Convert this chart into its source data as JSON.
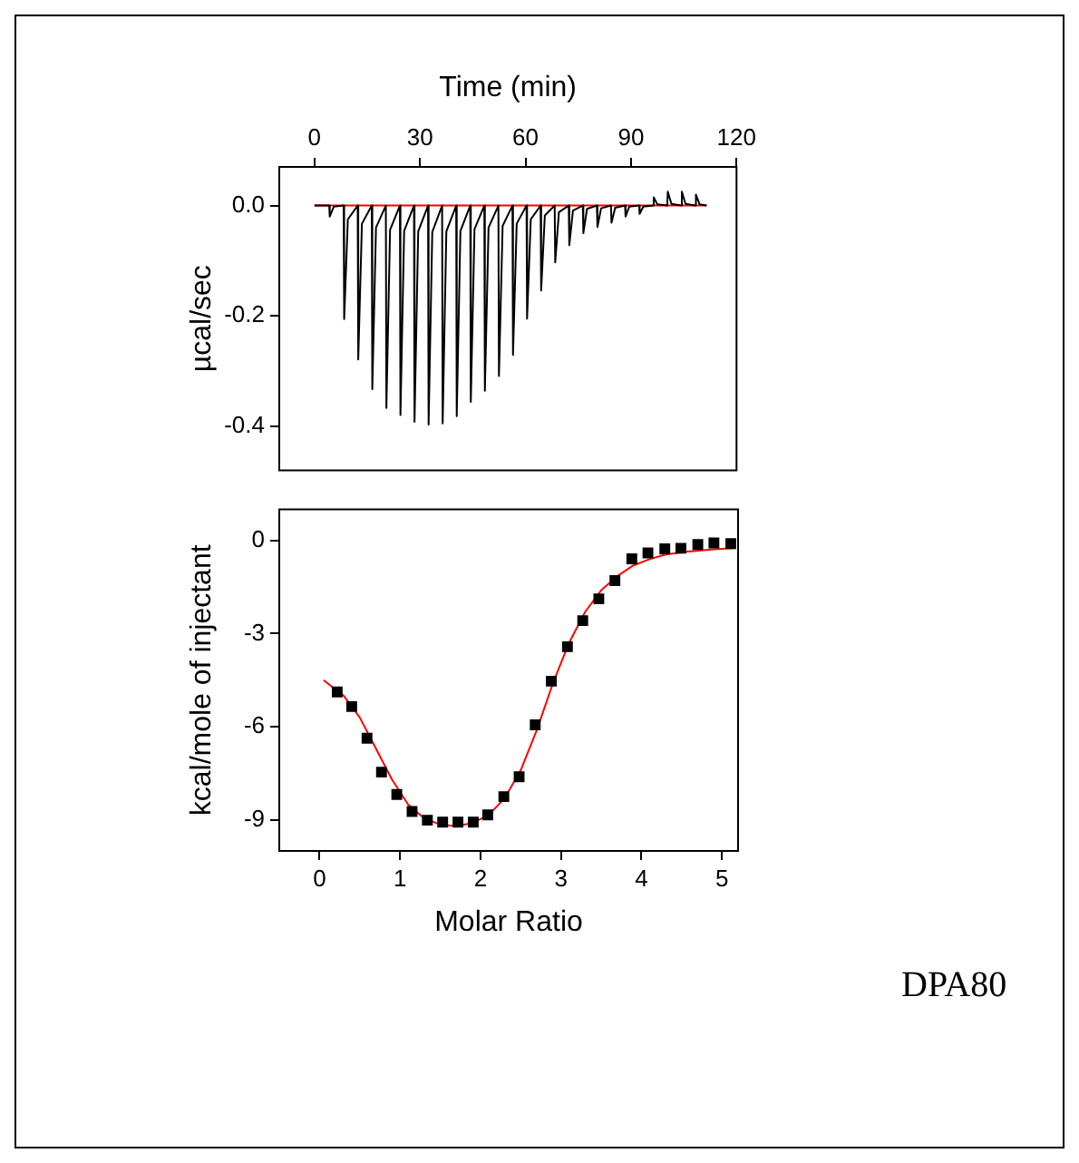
{
  "chart_data": [
    {
      "type": "line",
      "xlabel": "Time (min)",
      "ylabel": "µcal/sec",
      "xlim": [
        -10,
        120
      ],
      "xticks": [
        0,
        30,
        60,
        90,
        120
      ],
      "ylim": [
        -0.48,
        0.07
      ],
      "yticks": [
        {
          "value": 0,
          "label": "0.0"
        },
        {
          "value": -0.2,
          "label": "-0.2"
        },
        {
          "value": -0.4,
          "label": "-0.4"
        }
      ],
      "grid": false,
      "series": [
        {
          "color": "#000000",
          "x": [
            0,
            4.2,
            4.35,
            5.5,
            8.3,
            8.45,
            9.5,
            12.3,
            12.45,
            13.5,
            16.3,
            16.45,
            17.5,
            20.3,
            20.45,
            21.5,
            24.3,
            24.45,
            25.5,
            28.3,
            28.45,
            29.5,
            32.3,
            32.45,
            33.5,
            36.3,
            36.45,
            37.5,
            40.3,
            40.45,
            41.5,
            44.3,
            44.45,
            45.5,
            48.3,
            48.45,
            49.5,
            52.3,
            52.45,
            53.5,
            56.3,
            56.45,
            57.5,
            60.3,
            60.45,
            61.5,
            64.3,
            64.45,
            65.5,
            68.3,
            68.45,
            69.5,
            72.3,
            72.45,
            73.5,
            76.3,
            76.45,
            77.5,
            80.3,
            80.45,
            81.5,
            84.3,
            84.45,
            85.5,
            88.3,
            88.45,
            89.5,
            92.3,
            92.45,
            93.5,
            96.3,
            96.45,
            97.5,
            100.3,
            100.45,
            101.5,
            104.3,
            104.45,
            105.5,
            108.3,
            108.45,
            109.5,
            111.5
          ],
          "values": [
            0,
            0,
            -0.02,
            -0.002,
            0,
            -0.206,
            -0.025,
            0,
            -0.279,
            -0.033,
            0,
            -0.333,
            -0.04,
            0,
            -0.367,
            -0.044,
            0,
            -0.38,
            -0.046,
            0,
            -0.392,
            -0.047,
            0,
            -0.397,
            -0.048,
            0,
            -0.395,
            -0.047,
            0,
            -0.382,
            -0.046,
            0,
            -0.356,
            -0.043,
            0,
            -0.336,
            -0.04,
            0,
            -0.309,
            -0.037,
            0,
            -0.271,
            -0.033,
            0,
            -0.205,
            -0.025,
            0,
            -0.154,
            -0.018,
            0,
            -0.103,
            -0.012,
            0,
            -0.072,
            -0.009,
            0,
            -0.05,
            -0.006,
            0,
            -0.039,
            -0.005,
            0,
            -0.031,
            -0.004,
            0,
            -0.02,
            -0.002,
            0,
            -0.015,
            -0.002,
            0,
            0.015,
            0.002,
            0,
            0.025,
            0.003,
            0,
            0.025,
            0.003,
            0,
            0.02,
            0.002,
            0
          ]
        },
        {
          "color": "#ff0000",
          "x": [
            0,
            111.5
          ],
          "values": [
            0,
            0
          ]
        }
      ]
    },
    {
      "type": "scatter",
      "xlabel": "Molar Ratio",
      "ylabel": "kcal/mole of injectant",
      "xlim": [
        -0.5,
        5.2
      ],
      "xticks": [
        0,
        1,
        2,
        3,
        4,
        5
      ],
      "ylim": [
        -10,
        1
      ],
      "yticks": [
        0,
        -3,
        -6,
        -9
      ],
      "grid": false,
      "annotations": [
        "DPA80"
      ],
      "series": [
        {
          "color": "#000000",
          "marker": "square",
          "x": [
            0.22,
            0.4,
            0.59,
            0.77,
            0.96,
            1.15,
            1.34,
            1.53,
            1.72,
            1.91,
            2.09,
            2.29,
            2.48,
            2.68,
            2.88,
            3.08,
            3.27,
            3.47,
            3.67,
            3.88,
            4.08,
            4.29,
            4.49,
            4.7,
            4.9,
            5.11
          ],
          "values": [
            -4.88,
            -5.35,
            -6.37,
            -7.46,
            -8.18,
            -8.73,
            -9.01,
            -9.07,
            -9.07,
            -9.07,
            -8.84,
            -8.25,
            -7.61,
            -5.94,
            -4.53,
            -3.42,
            -2.58,
            -1.88,
            -1.29,
            -0.59,
            -0.4,
            -0.27,
            -0.25,
            -0.13,
            -0.08,
            -0.1
          ]
        },
        {
          "type": "line",
          "color": "#ff0000",
          "x": [
            0.05,
            0.3,
            0.5,
            0.7,
            0.9,
            1.1,
            1.3,
            1.5,
            1.7,
            1.9,
            2.1,
            2.3,
            2.5,
            2.7,
            2.9,
            3.1,
            3.3,
            3.5,
            3.7,
            3.9,
            4.1,
            4.3,
            4.6,
            4.9,
            5.15
          ],
          "values": [
            -4.5,
            -5,
            -5.7,
            -6.7,
            -7.7,
            -8.5,
            -8.95,
            -9.15,
            -9.2,
            -9.1,
            -8.85,
            -8.3,
            -7.4,
            -6.1,
            -4.6,
            -3.3,
            -2.3,
            -1.6,
            -1.15,
            -0.8,
            -0.6,
            -0.45,
            -0.35,
            -0.28,
            -0.25
          ]
        }
      ]
    }
  ]
}
